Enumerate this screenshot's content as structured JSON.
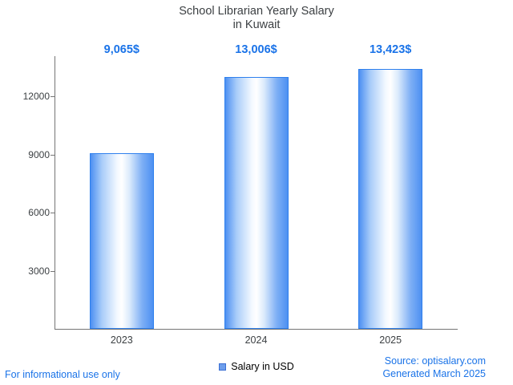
{
  "chart_data": {
    "type": "bar",
    "title_line1": "School Librarian Yearly Salary",
    "title_line2": "in Kuwait",
    "categories": [
      "2023",
      "2024",
      "2025"
    ],
    "values": [
      9065,
      13006,
      13423
    ],
    "value_labels": [
      "9,065$",
      "13,006$",
      "13,423$"
    ],
    "yticks": [
      3000,
      6000,
      9000,
      12000
    ],
    "ylim": [
      0,
      14070
    ],
    "grid": false,
    "legend_position": "bottom-center",
    "legend_label": "Salary in USD"
  },
  "colors": {
    "accent_text": "#1a73e8",
    "bar_edge": "#4d90f2",
    "bar_border": "#2f80ed",
    "bar_center": "#ffffff",
    "axis": "#757575",
    "title_text": "#3c4043"
  },
  "footer": {
    "left_note": "For informational use only",
    "source": "Source: optisalary.com",
    "generated": "Generated March 2025"
  }
}
